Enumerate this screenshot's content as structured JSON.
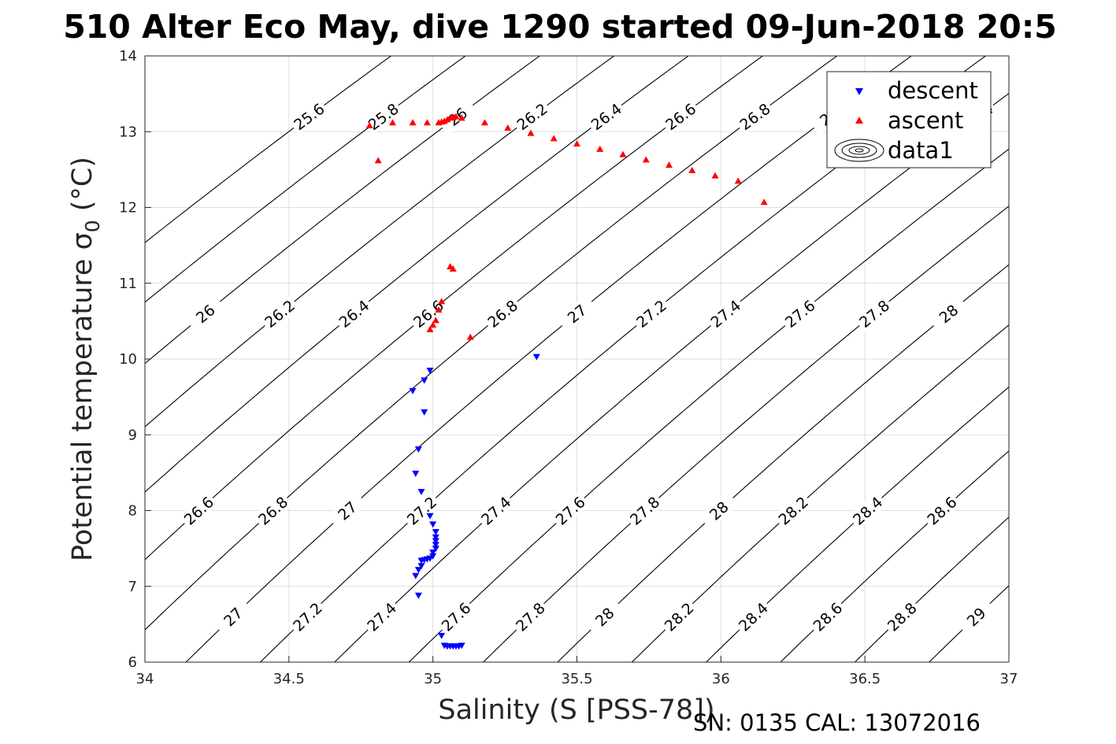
{
  "chart_data": {
    "type": "scatter",
    "title": "510 Alter Eco May, dive 1290 started 09-Jun-2018 20:5",
    "xlabel": "Salinity (S [PSS-78])",
    "ylabel": "Potential temperature σ",
    "ylabel_sub": "0",
    "ylabel_unit": " (°C)",
    "footer": "SN: 0135  CAL: 13072016",
    "xlim": [
      34,
      37
    ],
    "ylim": [
      6,
      14
    ],
    "x_ticks": [
      "34",
      "34.5",
      "35",
      "35.5",
      "36",
      "36.5",
      "37"
    ],
    "y_ticks": [
      "6",
      "7",
      "8",
      "9",
      "10",
      "11",
      "12",
      "13",
      "14"
    ],
    "grid": true,
    "legend_position": "top-right",
    "legend": [
      {
        "name": "descent",
        "marker": "triangle-down",
        "color": "#0000ff"
      },
      {
        "name": "ascent",
        "marker": "triangle-up",
        "color": "#ff0000"
      },
      {
        "name": "data1",
        "marker": "contour",
        "color": "#000000"
      }
    ],
    "series": [
      {
        "name": "descent",
        "color": "#0000ff",
        "marker": "triangle-down",
        "points": [
          [
            35.36,
            10.03
          ],
          [
            34.99,
            9.85
          ],
          [
            34.97,
            9.72
          ],
          [
            34.93,
            9.58
          ],
          [
            34.97,
            9.3
          ],
          [
            34.95,
            8.81
          ],
          [
            34.94,
            8.49
          ],
          [
            34.96,
            8.25
          ],
          [
            34.99,
            7.93
          ],
          [
            35.0,
            7.82
          ],
          [
            35.01,
            7.72
          ],
          [
            35.01,
            7.65
          ],
          [
            35.01,
            7.6
          ],
          [
            35.01,
            7.55
          ],
          [
            35.01,
            7.5
          ],
          [
            35.0,
            7.45
          ],
          [
            35.0,
            7.4
          ],
          [
            34.99,
            7.37
          ],
          [
            34.98,
            7.36
          ],
          [
            34.97,
            7.35
          ],
          [
            34.96,
            7.34
          ],
          [
            34.96,
            7.27
          ],
          [
            34.95,
            7.22
          ],
          [
            34.94,
            7.14
          ],
          [
            34.95,
            6.88
          ],
          [
            35.03,
            6.35
          ],
          [
            35.04,
            6.22
          ],
          [
            35.05,
            6.21
          ],
          [
            35.06,
            6.21
          ],
          [
            35.07,
            6.21
          ],
          [
            35.08,
            6.21
          ],
          [
            35.09,
            6.21
          ],
          [
            35.1,
            6.22
          ]
        ]
      },
      {
        "name": "ascent",
        "color": "#ff0000",
        "marker": "triangle-up",
        "points": [
          [
            35.13,
            10.29
          ],
          [
            34.99,
            10.39
          ],
          [
            35.0,
            10.45
          ],
          [
            35.01,
            10.51
          ],
          [
            35.02,
            10.65
          ],
          [
            35.03,
            10.76
          ],
          [
            35.06,
            11.22
          ],
          [
            35.07,
            11.19
          ],
          [
            34.81,
            12.62
          ],
          [
            34.78,
            13.08
          ],
          [
            34.86,
            13.12
          ],
          [
            34.93,
            13.12
          ],
          [
            34.98,
            13.12
          ],
          [
            35.02,
            13.12
          ],
          [
            35.03,
            13.13
          ],
          [
            35.04,
            13.14
          ],
          [
            35.05,
            13.16
          ],
          [
            35.06,
            13.18
          ],
          [
            35.07,
            13.19
          ],
          [
            35.08,
            13.2
          ],
          [
            35.1,
            13.18
          ],
          [
            35.18,
            13.12
          ],
          [
            35.26,
            13.05
          ],
          [
            35.34,
            12.98
          ],
          [
            35.42,
            12.91
          ],
          [
            35.5,
            12.84
          ],
          [
            35.58,
            12.77
          ],
          [
            35.66,
            12.7
          ],
          [
            35.74,
            12.63
          ],
          [
            35.82,
            12.56
          ],
          [
            35.9,
            12.49
          ],
          [
            35.98,
            12.42
          ],
          [
            36.06,
            12.35
          ],
          [
            36.15,
            12.07
          ]
        ]
      }
    ],
    "contours": {
      "levels": [
        "25.6",
        "25.8",
        "26",
        "26.2",
        "26.4",
        "26.6",
        "26.8",
        "27",
        "27.2",
        "27.4",
        "27.6",
        "27.8",
        "28",
        "28.2",
        "28.4",
        "28.6",
        "28.8",
        "29"
      ]
    }
  }
}
